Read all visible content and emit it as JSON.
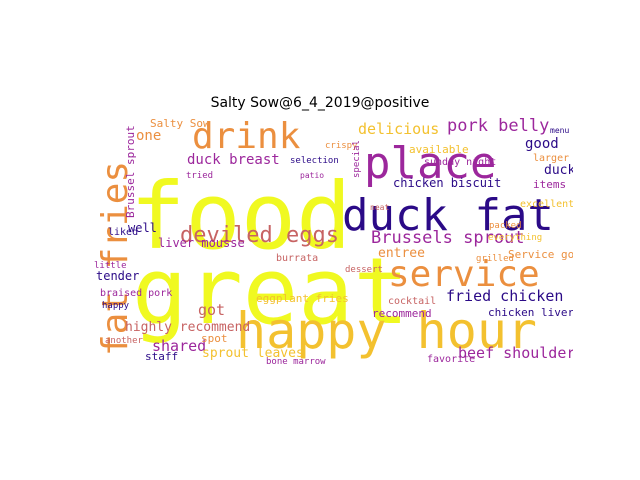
{
  "title": "Salty Sow@6_4_2019@positive",
  "palette": {
    "background": "#ffffff",
    "yellow": "#f0f921",
    "gold": "#f3c12f",
    "orange": "#eb8f3f",
    "rose": "#c76363",
    "magenta": "#9c279c",
    "indigo": "#2b0a87"
  },
  "words": [
    {
      "text": "food",
      "color": "#f0f921"
    },
    {
      "text": "great",
      "color": "#f0f921"
    },
    {
      "text": "place",
      "color": "#9c279c"
    },
    {
      "text": "duck fat",
      "color": "#2b0a87"
    },
    {
      "text": "happy hour",
      "color": "#f3c12f"
    },
    {
      "text": "fat fries",
      "color": "#eb8f3f"
    },
    {
      "text": "service",
      "color": "#eb8f3f"
    },
    {
      "text": "drink",
      "color": "#eb8f3f"
    },
    {
      "text": "deviled eggs",
      "color": "#c76363"
    },
    {
      "text": "Brussels sprout",
      "color": "#9c279c"
    },
    {
      "text": "fried chicken",
      "color": "#2b0a87"
    },
    {
      "text": "pork belly",
      "color": "#9c279c"
    },
    {
      "text": "delicious",
      "color": "#f3c12f"
    },
    {
      "text": "duck breast",
      "color": "#9c279c"
    },
    {
      "text": "beef shoulder",
      "color": "#9c279c"
    },
    {
      "text": "highly recommend",
      "color": "#c76363"
    },
    {
      "text": "shared",
      "color": "#9c279c"
    },
    {
      "text": "got",
      "color": "#c76363"
    },
    {
      "text": "good",
      "color": "#2b0a87"
    },
    {
      "text": "chicken biscuit",
      "color": "#2b0a87"
    },
    {
      "text": "liver mousse",
      "color": "#9c279c"
    },
    {
      "text": "sprout leaves",
      "color": "#f3c12f"
    },
    {
      "text": "entree",
      "color": "#eb8f3f"
    },
    {
      "text": "duck",
      "color": "#2b0a87"
    },
    {
      "text": "items",
      "color": "#9c279c"
    },
    {
      "text": "one",
      "color": "#eb8f3f"
    },
    {
      "text": "Salty Sow",
      "color": "#eb8f3f"
    },
    {
      "text": "Brussel sprout",
      "color": "#9c279c"
    },
    {
      "text": "well",
      "color": "#2b0a87"
    },
    {
      "text": "tender",
      "color": "#2b0a87"
    },
    {
      "text": "braised pork",
      "color": "#9c279c"
    },
    {
      "text": "staff",
      "color": "#2b0a87"
    },
    {
      "text": "eggplant fries",
      "color": "#f3c12f"
    },
    {
      "text": "spot",
      "color": "#eb8f3f"
    },
    {
      "text": "chicken liver",
      "color": "#2b0a87"
    },
    {
      "text": "Service good",
      "color": "#eb8f3f"
    },
    {
      "text": "recommend",
      "color": "#9c279c"
    },
    {
      "text": "cocktail",
      "color": "#c76363"
    },
    {
      "text": "crispy",
      "color": "#eb8f3f"
    },
    {
      "text": "available",
      "color": "#f3c12f"
    },
    {
      "text": "special",
      "color": "#9c279c"
    },
    {
      "text": "selection",
      "color": "#2b0a87"
    },
    {
      "text": "tried",
      "color": "#9c279c"
    },
    {
      "text": "larger",
      "color": "#eb8f3f"
    },
    {
      "text": "excellent",
      "color": "#f3c12f"
    },
    {
      "text": "little",
      "color": "#9c279c"
    },
    {
      "text": "happy",
      "color": "#2b0a87"
    },
    {
      "text": "burrata",
      "color": "#c76363"
    },
    {
      "text": "sunday night",
      "color": "#9c279c"
    },
    {
      "text": "favorite",
      "color": "#9c279c"
    },
    {
      "text": "bone marrow",
      "color": "#9c279c"
    },
    {
      "text": "liked",
      "color": "#2b0a87"
    },
    {
      "text": "another",
      "color": "#c76363"
    },
    {
      "text": "patio",
      "color": "#9c279c"
    },
    {
      "text": "dessert",
      "color": "#c76363"
    },
    {
      "text": "packed",
      "color": "#eb8f3f"
    },
    {
      "text": "everything",
      "color": "#f3c12f"
    },
    {
      "text": "grilled",
      "color": "#eb8f3f"
    },
    {
      "text": "neat",
      "color": "#c76363"
    },
    {
      "text": "menu",
      "color": "#2b0a87"
    }
  ]
}
